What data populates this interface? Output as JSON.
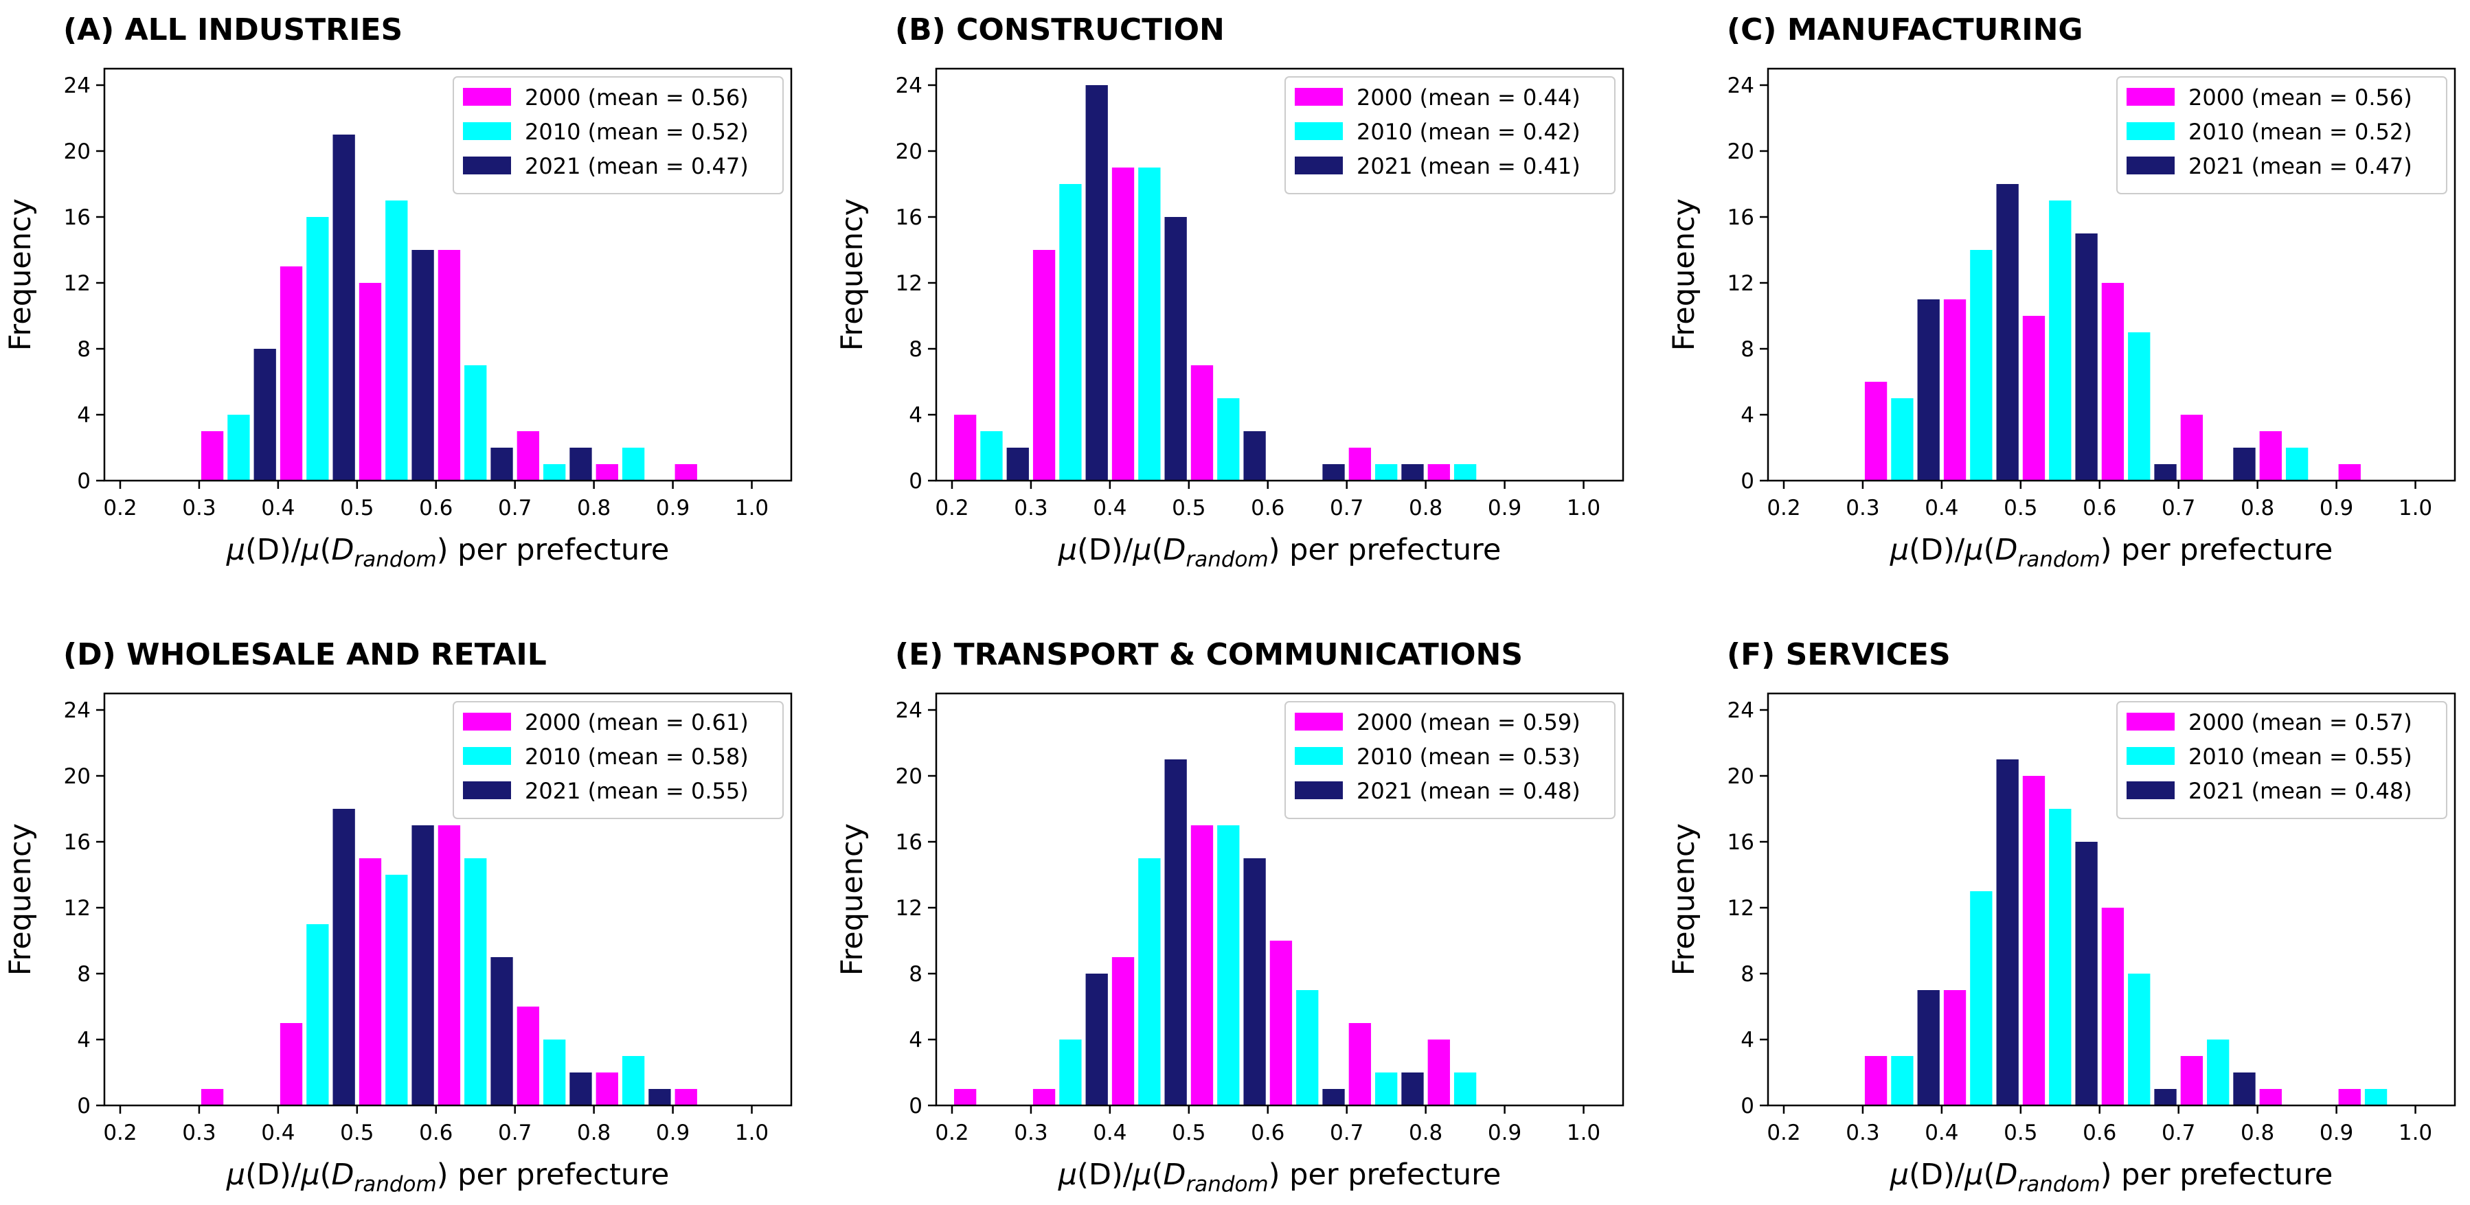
{
  "colors": {
    "2000": "#ff00ff",
    "2010": "#00ffff",
    "2021": "#191970"
  },
  "chart_data": [
    {
      "type": "bar",
      "title": "(A) ALL INDUSTRIES",
      "xlabel": "μ(D)/μ(D_random) per prefecture",
      "ylabel": "Frequency",
      "xlim": [
        0.18,
        1.05
      ],
      "ylim": [
        0,
        25
      ],
      "xticks": [
        0.2,
        0.3,
        0.4,
        0.5,
        0.6,
        0.7,
        0.8,
        0.9,
        1.0
      ],
      "yticks": [
        0,
        4,
        8,
        12,
        16,
        20,
        24
      ],
      "bin_starts": [
        0.2,
        0.3,
        0.4,
        0.5,
        0.6,
        0.7,
        0.8,
        0.9
      ],
      "legend_position": "top-right",
      "series": [
        {
          "name": "2000 (mean = 0.56)",
          "key": "2000",
          "values": [
            0,
            3,
            13,
            12,
            14,
            3,
            1,
            1
          ]
        },
        {
          "name": "2010 (mean = 0.52)",
          "key": "2010",
          "values": [
            0,
            4,
            16,
            17,
            7,
            1,
            2,
            0
          ]
        },
        {
          "name": "2021 (mean = 0.47)",
          "key": "2021",
          "values": [
            0,
            8,
            21,
            14,
            2,
            2,
            0,
            0
          ]
        }
      ]
    },
    {
      "type": "bar",
      "title": "(B) CONSTRUCTION",
      "xlabel": "μ(D)/μ(D_random) per prefecture",
      "ylabel": "Frequency",
      "xlim": [
        0.18,
        1.05
      ],
      "ylim": [
        0,
        25
      ],
      "xticks": [
        0.2,
        0.3,
        0.4,
        0.5,
        0.6,
        0.7,
        0.8,
        0.9,
        1.0
      ],
      "yticks": [
        0,
        4,
        8,
        12,
        16,
        20,
        24
      ],
      "bin_starts": [
        0.2,
        0.3,
        0.4,
        0.5,
        0.6,
        0.7,
        0.8,
        0.9
      ],
      "legend_position": "top-right",
      "series": [
        {
          "name": "2000 (mean = 0.44)",
          "key": "2000",
          "values": [
            4,
            14,
            19,
            7,
            0,
            2,
            1,
            0
          ]
        },
        {
          "name": "2010 (mean = 0.42)",
          "key": "2010",
          "values": [
            3,
            18,
            19,
            5,
            0,
            1,
            1,
            0
          ]
        },
        {
          "name": "2021 (mean = 0.41)",
          "key": "2021",
          "values": [
            2,
            24,
            16,
            3,
            1,
            1,
            0,
            0
          ]
        }
      ]
    },
    {
      "type": "bar",
      "title": "(C) MANUFACTURING",
      "xlabel": "μ(D)/μ(D_random) per prefecture",
      "ylabel": "Frequency",
      "xlim": [
        0.18,
        1.05
      ],
      "ylim": [
        0,
        25
      ],
      "xticks": [
        0.2,
        0.3,
        0.4,
        0.5,
        0.6,
        0.7,
        0.8,
        0.9,
        1.0
      ],
      "yticks": [
        0,
        4,
        8,
        12,
        16,
        20,
        24
      ],
      "bin_starts": [
        0.2,
        0.3,
        0.4,
        0.5,
        0.6,
        0.7,
        0.8,
        0.9
      ],
      "legend_position": "top-right",
      "series": [
        {
          "name": "2000 (mean = 0.56)",
          "key": "2000",
          "values": [
            0,
            6,
            11,
            10,
            12,
            4,
            3,
            1
          ]
        },
        {
          "name": "2010 (mean = 0.52)",
          "key": "2010",
          "values": [
            0,
            5,
            14,
            17,
            9,
            0,
            2,
            0
          ]
        },
        {
          "name": "2021 (mean = 0.47)",
          "key": "2021",
          "values": [
            0,
            11,
            18,
            15,
            1,
            2,
            0,
            0
          ]
        }
      ]
    },
    {
      "type": "bar",
      "title": "(D) WHOLESALE AND RETAIL",
      "xlabel": "μ(D)/μ(D_random) per prefecture",
      "ylabel": "Frequency",
      "xlim": [
        0.18,
        1.05
      ],
      "ylim": [
        0,
        25
      ],
      "xticks": [
        0.2,
        0.3,
        0.4,
        0.5,
        0.6,
        0.7,
        0.8,
        0.9,
        1.0
      ],
      "yticks": [
        0,
        4,
        8,
        12,
        16,
        20,
        24
      ],
      "bin_starts": [
        0.2,
        0.3,
        0.4,
        0.5,
        0.6,
        0.7,
        0.8,
        0.9
      ],
      "legend_position": "top-right",
      "series": [
        {
          "name": "2000 (mean = 0.61)",
          "key": "2000",
          "values": [
            0,
            1,
            5,
            15,
            17,
            6,
            2,
            1
          ]
        },
        {
          "name": "2010 (mean = 0.58)",
          "key": "2010",
          "values": [
            0,
            0,
            11,
            14,
            15,
            4,
            3,
            0
          ]
        },
        {
          "name": "2021 (mean = 0.55)",
          "key": "2021",
          "values": [
            0,
            0,
            18,
            17,
            9,
            2,
            1,
            0
          ]
        }
      ]
    },
    {
      "type": "bar",
      "title": "(E) TRANSPORT & COMMUNICATIONS",
      "xlabel": "μ(D)/μ(D_random) per prefecture",
      "ylabel": "Frequency",
      "xlim": [
        0.18,
        1.05
      ],
      "ylim": [
        0,
        25
      ],
      "xticks": [
        0.2,
        0.3,
        0.4,
        0.5,
        0.6,
        0.7,
        0.8,
        0.9,
        1.0
      ],
      "yticks": [
        0,
        4,
        8,
        12,
        16,
        20,
        24
      ],
      "bin_starts": [
        0.2,
        0.3,
        0.4,
        0.5,
        0.6,
        0.7,
        0.8,
        0.9
      ],
      "legend_position": "top-right",
      "series": [
        {
          "name": "2000 (mean = 0.59)",
          "key": "2000",
          "values": [
            1,
            1,
            9,
            17,
            10,
            5,
            4,
            0
          ]
        },
        {
          "name": "2010 (mean = 0.53)",
          "key": "2010",
          "values": [
            0,
            4,
            15,
            17,
            7,
            2,
            2,
            0
          ]
        },
        {
          "name": "2021 (mean = 0.48)",
          "key": "2021",
          "values": [
            0,
            8,
            21,
            15,
            1,
            2,
            0,
            0
          ]
        }
      ]
    },
    {
      "type": "bar",
      "title": "(F) SERVICES",
      "xlabel": "μ(D)/μ(D_random) per prefecture",
      "ylabel": "Frequency",
      "xlim": [
        0.18,
        1.05
      ],
      "ylim": [
        0,
        25
      ],
      "xticks": [
        0.2,
        0.3,
        0.4,
        0.5,
        0.6,
        0.7,
        0.8,
        0.9,
        1.0
      ],
      "yticks": [
        0,
        4,
        8,
        12,
        16,
        20,
        24
      ],
      "bin_starts": [
        0.2,
        0.3,
        0.4,
        0.5,
        0.6,
        0.7,
        0.8,
        0.9
      ],
      "legend_position": "top-right",
      "series": [
        {
          "name": "2000 (mean = 0.57)",
          "key": "2000",
          "values": [
            0,
            3,
            7,
            20,
            12,
            3,
            1,
            1
          ]
        },
        {
          "name": "2010 (mean = 0.55)",
          "key": "2010",
          "values": [
            0,
            3,
            13,
            18,
            8,
            4,
            0,
            1
          ]
        },
        {
          "name": "2021 (mean = 0.48)",
          "key": "2021",
          "values": [
            0,
            7,
            21,
            16,
            1,
            2,
            0,
            0
          ]
        }
      ]
    }
  ]
}
